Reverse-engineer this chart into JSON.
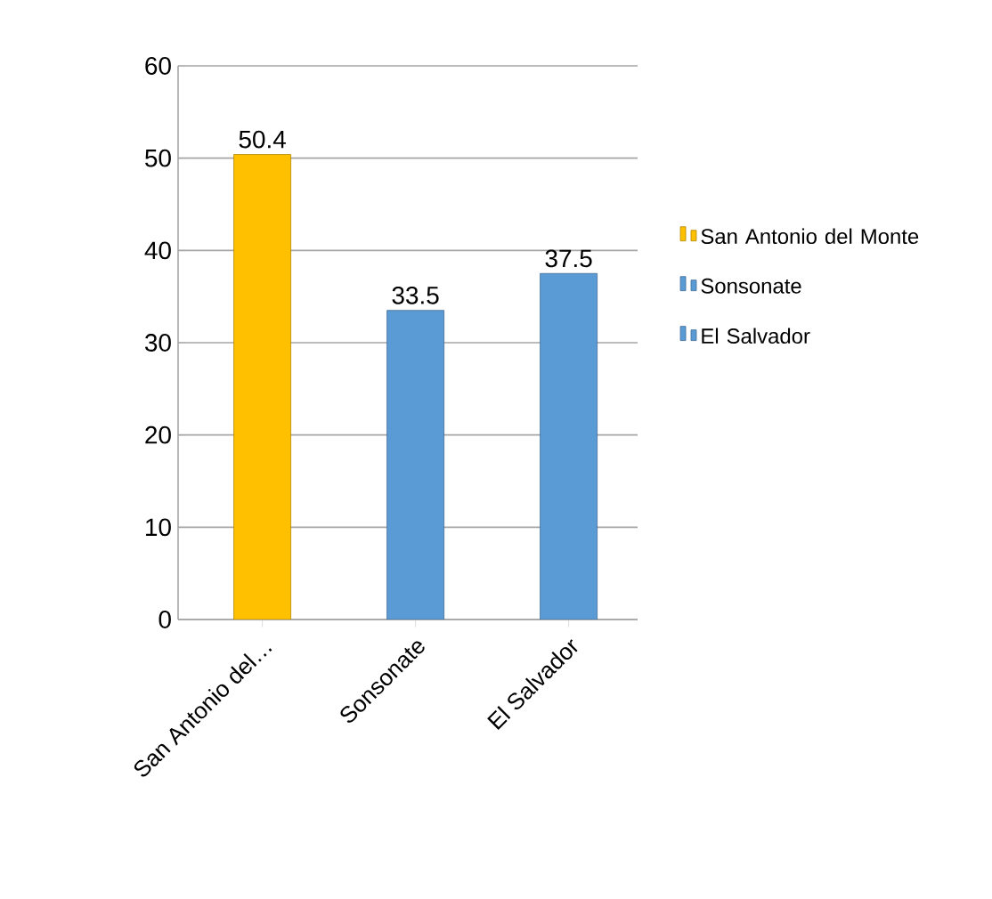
{
  "chart_data": {
    "type": "bar",
    "categories": [
      "San Antonio del…",
      "Sonsonate",
      "El Salvador"
    ],
    "series": [
      {
        "name": "San Antonio del Monte",
        "color": "#ffc000",
        "values": [
          50.4,
          null,
          null
        ]
      },
      {
        "name": "Sonsonate",
        "color": "#5b9bd5",
        "values": [
          null,
          33.5,
          null
        ]
      },
      {
        "name": "El Salvador",
        "color": "#5b9bd5",
        "values": [
          null,
          null,
          37.5
        ]
      }
    ],
    "ylim": [
      0,
      60
    ],
    "yticks": [
      0,
      10,
      20,
      30,
      40,
      50,
      60
    ],
    "grid": "y",
    "legend": "right",
    "data_labels": true
  }
}
